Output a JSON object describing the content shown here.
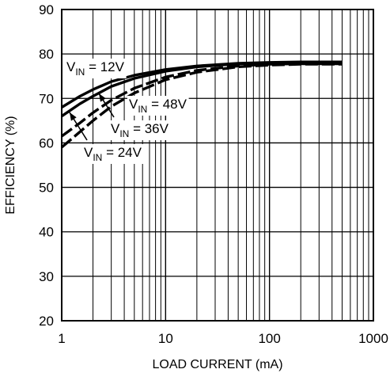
{
  "chart_data": {
    "type": "line",
    "title": "",
    "xlabel": "LOAD CURRENT (mA)",
    "ylabel": "EFFICIENCY (%)",
    "xscale": "log",
    "xlim": [
      1,
      1000
    ],
    "ylim": [
      20,
      90
    ],
    "x_ticks": [
      "1",
      "10",
      "100",
      "1000"
    ],
    "y_ticks": [
      "20",
      "30",
      "40",
      "50",
      "60",
      "70",
      "80",
      "90"
    ],
    "grid": true,
    "legend": "none",
    "line_color": "#000000",
    "series": [
      {
        "name": "VIN = 12V",
        "label_main": "V",
        "label_sub": "IN",
        "label_rest": " = 12V",
        "x": [
          1,
          1.5,
          2,
          3,
          5,
          10,
          20,
          50,
          100,
          200,
          500
        ],
        "y": [
          68,
          70.5,
          72,
          73.8,
          75.2,
          76.5,
          77.3,
          77.9,
          78.1,
          78.2,
          78.2
        ]
      },
      {
        "name": "VIN = 24V",
        "label_main": "V",
        "label_sub": "IN",
        "label_rest": " = 24V",
        "x": [
          1,
          1.5,
          2,
          3,
          5,
          10,
          20,
          50,
          100,
          200,
          500
        ],
        "y": [
          66,
          68.8,
          70.5,
          72.7,
          74.5,
          76.1,
          77.1,
          77.8,
          78.0,
          78.1,
          78.1
        ]
      },
      {
        "name": "VIN = 36V",
        "label_main": "V",
        "label_sub": "IN",
        "label_rest": " = 36V",
        "x": [
          1,
          1.5,
          2,
          3,
          5,
          10,
          20,
          50,
          100,
          200,
          500
        ],
        "y": [
          61.5,
          64.5,
          66.8,
          69.6,
          72.3,
          74.8,
          76.3,
          77.3,
          77.7,
          77.8,
          77.8
        ]
      },
      {
        "name": "VIN = 48V",
        "label_main": "V",
        "label_sub": "IN",
        "label_rest": " = 48V",
        "x": [
          1,
          1.5,
          2,
          3,
          5,
          10,
          20,
          50,
          100,
          200,
          500
        ],
        "y": [
          59,
          62.5,
          65,
          68.2,
          71.2,
          74.2,
          75.9,
          77.1,
          77.5,
          77.7,
          77.7
        ]
      }
    ]
  }
}
